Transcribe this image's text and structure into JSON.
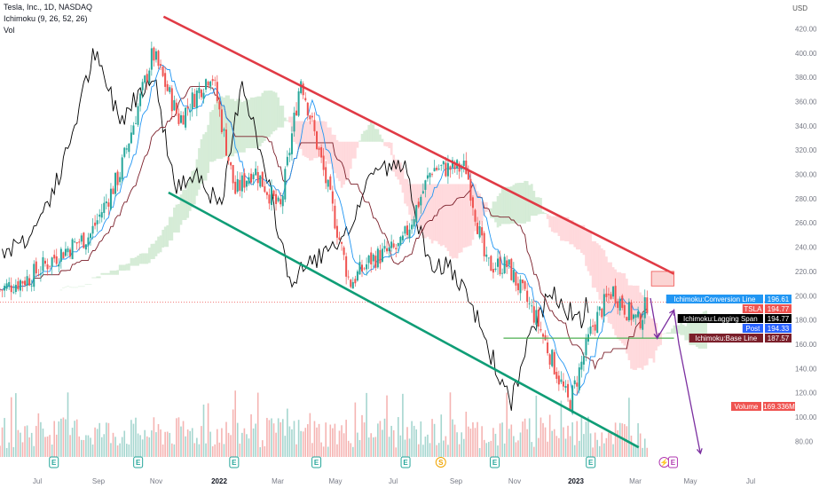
{
  "header": {
    "symbol_line": "Tesla, Inc., 1D, NASDAQ",
    "indicator_line": "Ichimoku (9, 26, 52, 26)",
    "volume_line": "Vol"
  },
  "currency": "USD",
  "colors": {
    "candle_up": "#26a69a",
    "candle_down": "#ef5350",
    "cloud_bull": "#c8e6c9",
    "cloud_bear": "#ffcdd2",
    "conversion": "#2196f3",
    "base": "#7b1f2a",
    "lagging": "#000000",
    "upper_channel": "#e03a45",
    "lower_channel": "#0f9d76",
    "projection": "#7b2fa0",
    "support": "#4caf50"
  },
  "chart_data": {
    "type": "candlestick",
    "title": "Tesla, Inc., 1D, NASDAQ",
    "ylim": [
      70,
      430
    ],
    "y_ticks": [
      80,
      100,
      120,
      140,
      160,
      180,
      200,
      220,
      240,
      260,
      280,
      300,
      320,
      340,
      360,
      380,
      400,
      420
    ],
    "y_tick_labels": [
      "80.00",
      "100.00",
      "120.00",
      "140.00",
      "160.00",
      "180.00",
      "200.00",
      "220.00",
      "240.00",
      "260.00",
      "280.00",
      "300.00",
      "320.00",
      "340.00",
      "360.00",
      "380.00",
      "400.00",
      "420.00"
    ],
    "x_ticks": [
      {
        "label": "Jul",
        "bold": false
      },
      {
        "label": "Sep",
        "bold": false
      },
      {
        "label": "Nov",
        "bold": false
      },
      {
        "label": "2022",
        "bold": true
      },
      {
        "label": "Mar",
        "bold": false
      },
      {
        "label": "May",
        "bold": false
      },
      {
        "label": "Jul",
        "bold": false
      },
      {
        "label": "Sep",
        "bold": false
      },
      {
        "label": "Nov",
        "bold": false
      },
      {
        "label": "2023",
        "bold": true
      },
      {
        "label": "Mar",
        "bold": false
      },
      {
        "label": "May",
        "bold": false
      },
      {
        "label": "Jul",
        "bold": false
      }
    ],
    "price_trend": [
      [
        "2021-06-01",
        205
      ],
      [
        "2021-07-01",
        215
      ],
      [
        "2021-08-01",
        235
      ],
      [
        "2021-09-01",
        250
      ],
      [
        "2021-10-01",
        300
      ],
      [
        "2021-11-04",
        400
      ],
      [
        "2021-12-01",
        345
      ],
      [
        "2022-01-03",
        385
      ],
      [
        "2022-01-27",
        285
      ],
      [
        "2022-02-15",
        305
      ],
      [
        "2022-03-14",
        270
      ],
      [
        "2022-04-04",
        380
      ],
      [
        "2022-05-01",
        290
      ],
      [
        "2022-05-24",
        210
      ],
      [
        "2022-06-15",
        230
      ],
      [
        "2022-07-15",
        240
      ],
      [
        "2022-08-16",
        305
      ],
      [
        "2022-09-20",
        305
      ],
      [
        "2022-10-10",
        225
      ],
      [
        "2022-11-01",
        225
      ],
      [
        "2022-12-01",
        180
      ],
      [
        "2023-01-03",
        110
      ],
      [
        "2023-01-27",
        175
      ],
      [
        "2023-02-16",
        205
      ],
      [
        "2023-03-01",
        190
      ],
      [
        "2023-03-15",
        178
      ],
      [
        "2023-03-24",
        195
      ]
    ],
    "price_labels": [
      {
        "label": "Ichimoku:Conversion Line",
        "value": "196.61",
        "color": "#2196f3"
      },
      {
        "label": "TSLA",
        "value": "194.77",
        "color": "#ef5350"
      },
      {
        "label": "Ichimoku:Lagging Span",
        "value": "194.77",
        "color": "#000000"
      },
      {
        "label": "Post",
        "value": "194.33",
        "color": "#2962ff"
      },
      {
        "label": "Ichimoku:Base Line",
        "value": "187.57",
        "color": "#7b1f2a"
      }
    ],
    "volume_label": {
      "label": "Volume",
      "value": "169.336M",
      "color": "#ef5350"
    },
    "upper_trendline": [
      [
        "2021-11-15",
        430
      ],
      [
        "2023-04-20",
        218
      ]
    ],
    "lower_trendline": [
      [
        "2021-11-20",
        285
      ],
      [
        "2023-03-15",
        75
      ]
    ],
    "support_line": {
      "from": "2022-10-28",
      "to": "2023-04-20",
      "value": 165
    },
    "resistance_zone": {
      "from": "2023-03-28",
      "to": "2023-04-20",
      "y_low": 208,
      "y_high": 220
    },
    "projection_path": [
      [
        "2023-03-27",
        198
      ],
      [
        "2023-04-03",
        165
      ],
      [
        "2023-04-20",
        188
      ],
      [
        "2023-04-25",
        160
      ],
      [
        "2023-05-17",
        70
      ]
    ],
    "events": [
      {
        "date": "2021-07-26",
        "label": "E",
        "kind": "earnings"
      },
      {
        "date": "2021-10-20",
        "label": "E",
        "kind": "earnings"
      },
      {
        "date": "2022-01-26",
        "label": "E",
        "kind": "earnings"
      },
      {
        "date": "2022-04-20",
        "label": "E",
        "kind": "earnings"
      },
      {
        "date": "2022-07-20",
        "label": "E",
        "kind": "earnings"
      },
      {
        "date": "2022-08-25",
        "label": "S",
        "kind": "split"
      },
      {
        "date": "2022-10-19",
        "label": "E",
        "kind": "earnings"
      },
      {
        "date": "2023-01-25",
        "label": "E",
        "kind": "earnings"
      },
      {
        "date": "2023-04-10",
        "label": "⚡",
        "kind": "dividend"
      },
      {
        "date": "2023-04-19",
        "label": "E",
        "kind": "earnings-upcoming"
      }
    ]
  }
}
